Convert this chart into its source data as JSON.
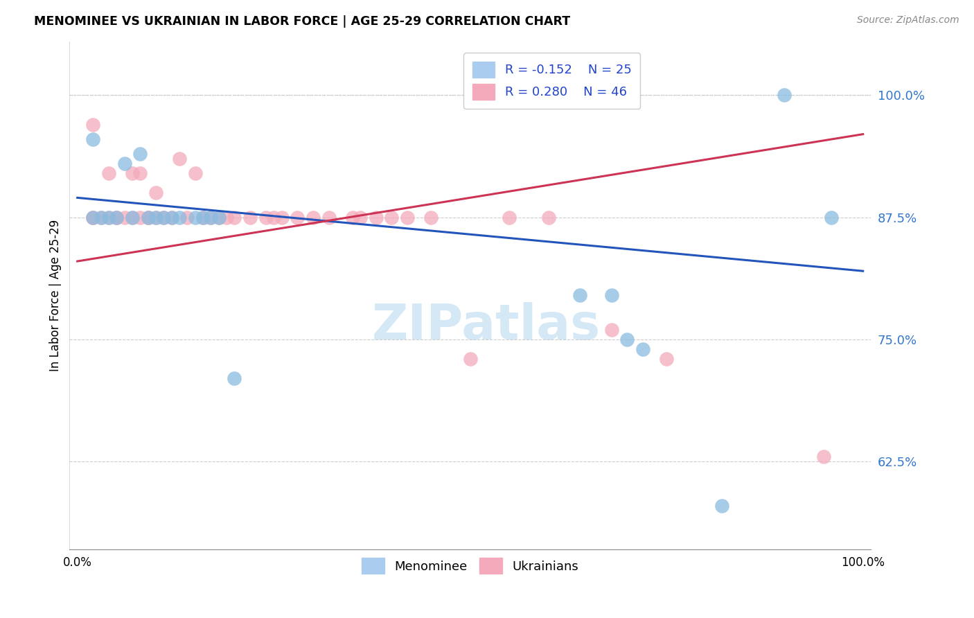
{
  "title": "MENOMINEE VS UKRAINIAN IN LABOR FORCE | AGE 25-29 CORRELATION CHART",
  "source": "Source: ZipAtlas.com",
  "ylabel": "In Labor Force | Age 25-29",
  "yticks": [
    0.625,
    0.75,
    0.875,
    1.0
  ],
  "ytick_labels": [
    "62.5%",
    "75.0%",
    "87.5%",
    "100.0%"
  ],
  "xlim": [
    -0.01,
    1.01
  ],
  "ylim": [
    0.535,
    1.055
  ],
  "legend_r_blue": "R = -0.152",
  "legend_n_blue": "N = 25",
  "legend_r_pink": "R = 0.280",
  "legend_n_pink": "N = 46",
  "blue_scatter_color": "#89bce0",
  "pink_scatter_color": "#f4aabb",
  "blue_line_color": "#2255bb",
  "pink_line_color": "#cc3355",
  "watermark_text": "ZIPatlas",
  "watermark_color": "#d5e8f5",
  "menominee_x": [
    0.02,
    0.02,
    0.03,
    0.04,
    0.05,
    0.06,
    0.07,
    0.08,
    0.09,
    0.1,
    0.11,
    0.12,
    0.13,
    0.15,
    0.16,
    0.17,
    0.18,
    0.2,
    0.64,
    0.68,
    0.7,
    0.72,
    0.82,
    0.9,
    0.96
  ],
  "menominee_y": [
    0.955,
    0.875,
    0.875,
    0.875,
    0.875,
    0.93,
    0.875,
    0.94,
    0.875,
    0.875,
    0.875,
    0.875,
    0.875,
    0.875,
    0.875,
    0.875,
    0.875,
    0.71,
    0.795,
    0.795,
    0.75,
    0.74,
    0.58,
    1.0,
    0.875
  ],
  "ukrainians_x": [
    0.02,
    0.02,
    0.02,
    0.03,
    0.04,
    0.04,
    0.05,
    0.05,
    0.06,
    0.07,
    0.07,
    0.08,
    0.08,
    0.09,
    0.09,
    0.1,
    0.1,
    0.11,
    0.12,
    0.13,
    0.14,
    0.15,
    0.16,
    0.17,
    0.18,
    0.19,
    0.2,
    0.22,
    0.24,
    0.25,
    0.26,
    0.28,
    0.3,
    0.32,
    0.35,
    0.36,
    0.38,
    0.4,
    0.42,
    0.45,
    0.5,
    0.55,
    0.6,
    0.68,
    0.75,
    0.95
  ],
  "ukrainians_y": [
    0.97,
    0.875,
    0.875,
    0.875,
    0.92,
    0.875,
    0.875,
    0.875,
    0.875,
    0.92,
    0.875,
    0.92,
    0.875,
    0.875,
    0.875,
    0.875,
    0.9,
    0.875,
    0.875,
    0.935,
    0.875,
    0.92,
    0.875,
    0.875,
    0.875,
    0.875,
    0.875,
    0.875,
    0.875,
    0.875,
    0.875,
    0.875,
    0.875,
    0.875,
    0.875,
    0.875,
    0.875,
    0.875,
    0.875,
    0.875,
    0.73,
    0.875,
    0.875,
    0.76,
    0.73,
    0.63
  ]
}
